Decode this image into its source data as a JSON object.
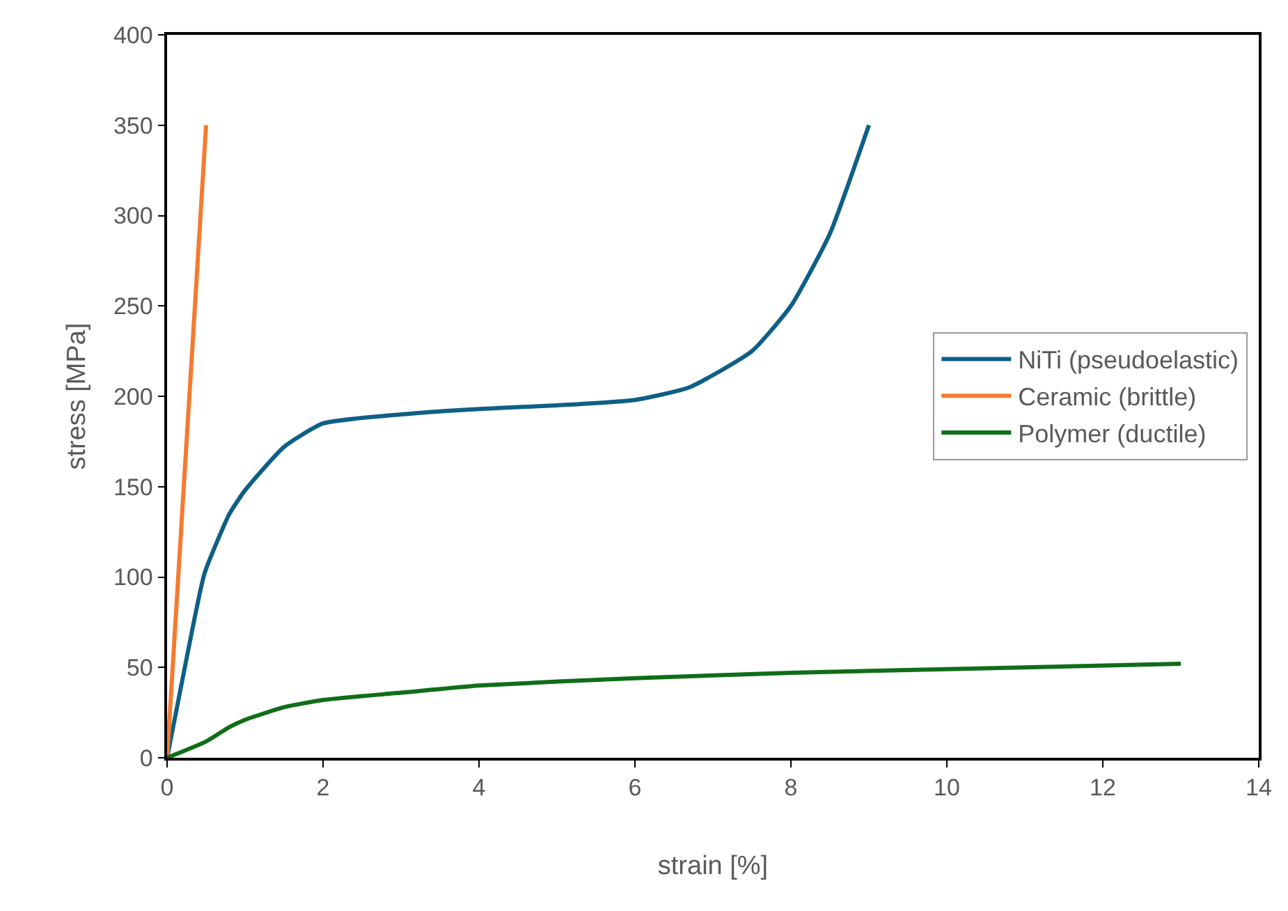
{
  "chart_data": {
    "type": "line",
    "xlabel": "strain [%]",
    "ylabel": "stress [MPa]",
    "xlim": [
      0,
      14
    ],
    "xticks": [
      0,
      2,
      4,
      6,
      8,
      10,
      12,
      14
    ],
    "ylim": [
      0,
      400
    ],
    "yticks": [
      0,
      50,
      100,
      150,
      200,
      250,
      300,
      350,
      400
    ],
    "legend": "right",
    "marker": "none",
    "line_style": "solid",
    "series": [
      {
        "name": "NiTi (pseudoelastic)",
        "color": "#0e5f86",
        "x": [
          0,
          0.25,
          0.48,
          0.8,
          1,
          1.5,
          2,
          3,
          4,
          5,
          6,
          6.7,
          7.5,
          8,
          8.5,
          9
        ],
        "values": [
          0,
          55,
          102,
          135,
          148,
          172,
          185,
          190,
          193,
          195,
          198,
          205,
          225,
          250,
          290,
          350
        ]
      },
      {
        "name": "Ceramic (brittle)",
        "color": "#f47a30",
        "x": [
          0,
          0.5
        ],
        "values": [
          0,
          350
        ]
      },
      {
        "name": "Polymer (ductile)",
        "color": "#0f6e17",
        "x": [
          0,
          0.5,
          0.8,
          1,
          1.5,
          2,
          3,
          4,
          6,
          8,
          10,
          13
        ],
        "values": [
          0,
          9,
          17,
          21,
          28,
          32,
          36,
          40,
          44,
          47,
          49,
          52
        ]
      }
    ]
  }
}
